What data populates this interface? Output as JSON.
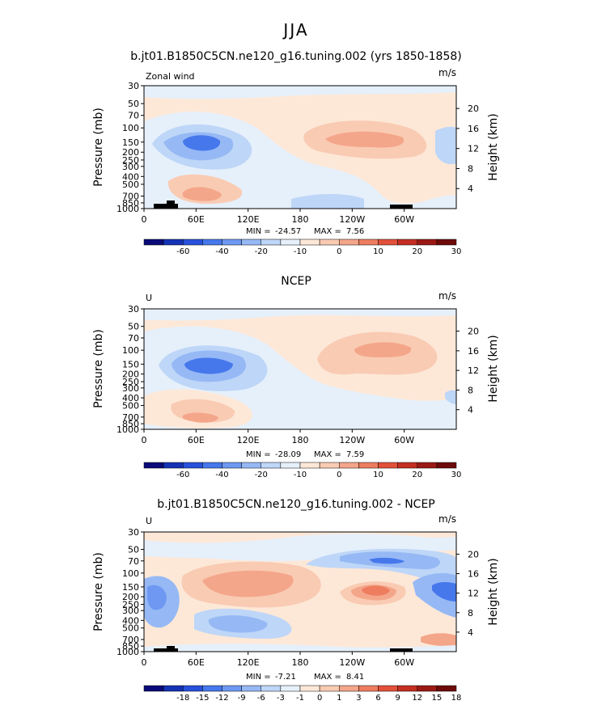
{
  "figure_title": "JJA",
  "chart_data": [
    {
      "type": "heatmap",
      "title": "b.jt01.B1850C5CN.ne120_g16.tuning.002 (yrs 1850-1858)",
      "left_label": "Zonal wind",
      "units": "m/s",
      "ylabel": "Pressure (mb)",
      "ylabel_right": "Height (km)",
      "x_ticks": [
        "0",
        "60E",
        "120E",
        "180",
        "120W",
        "60W"
      ],
      "y_ticks": [
        "30",
        "50",
        "70",
        "100",
        "150",
        "200",
        "250",
        "300",
        "400",
        "500",
        "700",
        "850",
        "1000"
      ],
      "height_ticks": [
        "20",
        "16",
        "12",
        "8",
        "4"
      ],
      "min_label": "MIN =",
      "min_value": "-24.57",
      "max_label": "MAX =",
      "max_value": "7.56",
      "colorbar_levels": [
        -70,
        -60,
        -50,
        -40,
        -30,
        -20,
        -15,
        -10,
        -5,
        0,
        5,
        10,
        15,
        20,
        25,
        30
      ],
      "colorbar_labels": [
        "-60",
        "-40",
        "-20",
        "-10",
        "0",
        "10",
        "20",
        "30"
      ],
      "colorbar_colors": [
        "#0a0a78",
        "#1432b4",
        "#2850dc",
        "#4678ec",
        "#6e98f2",
        "#96b9f5",
        "#bed6f7",
        "#e6f0fb",
        "#fde8d8",
        "#f9cbb3",
        "#f4a68a",
        "#ee7d60",
        "#e2503a",
        "#c42e22",
        "#9a1914",
        "#6e0a0a"
      ]
    },
    {
      "type": "heatmap",
      "title": "NCEP",
      "left_label": "U",
      "units": "m/s",
      "ylabel": "Pressure (mb)",
      "ylabel_right": "Height (km)",
      "x_ticks": [
        "0",
        "60E",
        "120E",
        "180",
        "120W",
        "60W"
      ],
      "y_ticks": [
        "30",
        "50",
        "70",
        "100",
        "150",
        "200",
        "250",
        "300",
        "400",
        "500",
        "700",
        "850",
        "1000"
      ],
      "height_ticks": [
        "20",
        "16",
        "12",
        "8",
        "4"
      ],
      "min_label": "MIN =",
      "min_value": "-28.09",
      "max_label": "MAX =",
      "max_value": "7.59",
      "colorbar_levels": [
        -70,
        -60,
        -50,
        -40,
        -30,
        -20,
        -15,
        -10,
        -5,
        0,
        5,
        10,
        15,
        20,
        25,
        30
      ],
      "colorbar_labels": [
        "-60",
        "-40",
        "-20",
        "-10",
        "0",
        "10",
        "20",
        "30"
      ],
      "colorbar_colors": [
        "#0a0a78",
        "#1432b4",
        "#2850dc",
        "#4678ec",
        "#6e98f2",
        "#96b9f5",
        "#bed6f7",
        "#e6f0fb",
        "#fde8d8",
        "#f9cbb3",
        "#f4a68a",
        "#ee7d60",
        "#e2503a",
        "#c42e22",
        "#9a1914",
        "#6e0a0a"
      ]
    },
    {
      "type": "heatmap",
      "title": "b.jt01.B1850C5CN.ne120_g16.tuning.002 - NCEP",
      "left_label": "U",
      "units": "m/s",
      "ylabel": "Pressure (mb)",
      "ylabel_right": "Height (km)",
      "x_ticks": [
        "0",
        "60E",
        "120E",
        "180",
        "120W",
        "60W"
      ],
      "y_ticks": [
        "30",
        "50",
        "70",
        "100",
        "150",
        "200",
        "250",
        "300",
        "400",
        "500",
        "700",
        "850",
        "1000"
      ],
      "height_ticks": [
        "20",
        "16",
        "12",
        "8",
        "4"
      ],
      "min_label": "MIN =",
      "min_value": "-7.21",
      "max_label": "MAX =",
      "max_value": "8.41",
      "colorbar_levels": [
        -21,
        -18,
        -15,
        -12,
        -9,
        -6,
        -3,
        -1,
        0,
        1,
        3,
        6,
        9,
        12,
        15,
        18
      ],
      "colorbar_labels": [
        "-18",
        "-15",
        "-12",
        "-9",
        "-6",
        "-3",
        "-1",
        "0",
        "1",
        "3",
        "6",
        "9",
        "12",
        "15",
        "18"
      ],
      "colorbar_colors": [
        "#0a0a78",
        "#1432b4",
        "#2850dc",
        "#4678ec",
        "#6e98f2",
        "#96b9f5",
        "#bed6f7",
        "#e6f0fb",
        "#fde8d8",
        "#f9cbb3",
        "#f4a68a",
        "#ee7d60",
        "#e2503a",
        "#c42e22",
        "#9a1914",
        "#6e0a0a"
      ]
    }
  ]
}
